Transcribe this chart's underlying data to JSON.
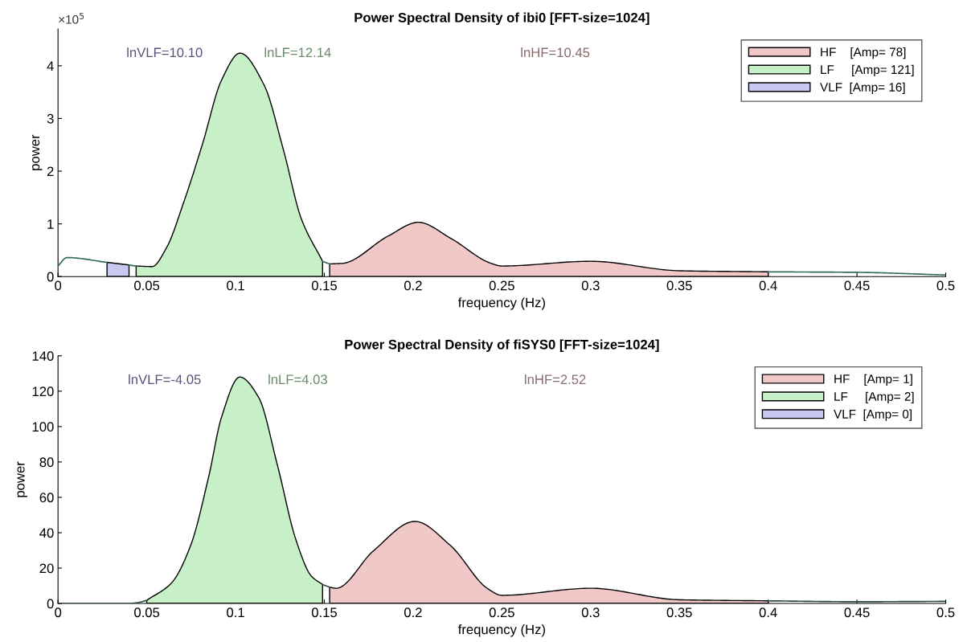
{
  "chart_data": [
    {
      "type": "area",
      "title": "Power Spectral Density of ibi0 [FFT-size=1024]",
      "xlabel": "frequency (Hz)",
      "ylabel": "power",
      "xlim": [
        0,
        0.5
      ],
      "xticks": [
        0,
        0.05,
        0.1,
        0.15,
        0.2,
        0.25,
        0.3,
        0.35,
        0.4,
        0.45,
        0.5
      ],
      "ylim": [
        0,
        4.7
      ],
      "yticks": [
        0,
        1,
        2,
        3,
        4
      ],
      "grid": false,
      "legend": "top right",
      "annotations": [
        "lnVLF=10.10",
        "lnLF=12.14",
        "lnHF=10.45",
        "×10$^{5}$"
      ],
      "series": [
        {
          "name": "HF    [Amp= 78]",
          "color": "#f0c8c8",
          "x": [
            0.153,
            0.16,
            0.186,
            0.203,
            0.221,
            0.244,
            0.25,
            0.3,
            0.35,
            0.4
          ],
          "values": [
            0.24,
            0.25,
            0.77,
            1.03,
            0.73,
            0.25,
            0.2,
            0.29,
            0.11,
            0.09
          ]
        },
        {
          "name": "LF     [Amp= 121]",
          "color": "#c8f0c8",
          "x": [
            0.044,
            0.053,
            0.061,
            0.071,
            0.0815,
            0.092,
            0.1025,
            0.116,
            0.127,
            0.137,
            0.149
          ],
          "values": [
            0.2,
            0.19,
            0.54,
            1.43,
            2.53,
            3.72,
            4.24,
            3.64,
            2.4,
            1.1,
            0.29
          ]
        },
        {
          "name": "VLF  [Amp= 16]",
          "color": "#c8c8f0",
          "x": [
            0.0276,
            0.04
          ],
          "values": [
            0.27,
            0.22
          ]
        },
        {
          "type": "line",
          "color": "#2e6b5e",
          "x": [
            0,
            0.005,
            0.0276,
            0.03,
            0.04,
            0.044,
            0.1,
            0.149,
            0.153,
            0.2,
            0.4,
            0.45,
            0.5
          ],
          "values": [
            0.2,
            0.36,
            0.27,
            null,
            0.22,
            0.2,
            null,
            0.29,
            0.24,
            null,
            0.09,
            0.08,
            0.03
          ]
        }
      ]
    },
    {
      "type": "area",
      "title": "Power Spectral Density of fiSYS0 [FFT-size=1024]",
      "xlabel": "frequency (Hz)",
      "ylabel": "power",
      "xlim": [
        0,
        0.5
      ],
      "xticks": [
        0,
        0.05,
        0.1,
        0.15,
        0.2,
        0.25,
        0.3,
        0.35,
        0.4,
        0.45,
        0.5
      ],
      "ylim": [
        0,
        140
      ],
      "yticks": [
        0,
        20,
        40,
        60,
        80,
        100,
        120,
        140
      ],
      "grid": false,
      "legend": "top right",
      "annotations": [
        "lnVLF=-4.05",
        "lnLF=4.03",
        "lnHF=2.52"
      ],
      "series": [
        {
          "name": "HF    [Amp= 1]",
          "color": "#f0c8c8",
          "x": [
            0.153,
            0.1566,
            0.1776,
            0.201,
            0.221,
            0.242,
            0.25,
            0.3,
            0.35,
            0.4
          ],
          "values": [
            9.2,
            8.6,
            29.7,
            46.4,
            32.8,
            8.4,
            4.6,
            8.6,
            2.1,
            1.5
          ]
        },
        {
          "name": "LF     [Amp= 2]",
          "color": "#c8f0c8",
          "x": [
            0.05,
            0.064,
            0.0747,
            0.085,
            0.092,
            0.1024,
            0.113,
            0.1235,
            0.134,
            0.1426,
            0.149
          ],
          "values": [
            1.8,
            11.7,
            32.8,
            72.3,
            105,
            128,
            116.5,
            78.5,
            36,
            15.6,
            10.7
          ]
        },
        {
          "name": "VLF  [Amp= 0]",
          "color": "#c8c8f0"
        },
        {
          "type": "line",
          "color": "#2e4a40",
          "x": [
            0,
            0.02,
            0.04,
            0.045,
            0.05,
            0.1,
            0.149,
            0.153,
            0.2,
            0.4,
            0.45,
            0.5
          ],
          "values": [
            0,
            0,
            0,
            0.5,
            1.8,
            null,
            10.7,
            9.2,
            null,
            1.5,
            1.0,
            1.2
          ]
        }
      ]
    }
  ]
}
